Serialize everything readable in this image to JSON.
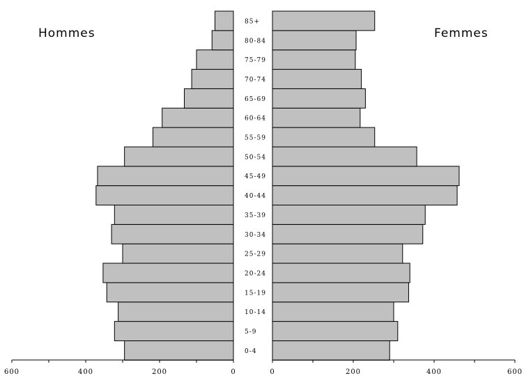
{
  "chart_data": {
    "type": "bar",
    "orientation": "horizontal",
    "layout": "population-pyramid",
    "categories": [
      "0-4",
      "5-9",
      "10-14",
      "15-19",
      "20-24",
      "25-29",
      "30-34",
      "35-39",
      "40-44",
      "45-49",
      "50-54",
      "55-59",
      "60-64",
      "65-69",
      "70-74",
      "75-79",
      "80-84",
      "85+"
    ],
    "series": [
      {
        "name": "Hommes",
        "side": "left",
        "values": [
          295,
          322,
          312,
          343,
          353,
          300,
          330,
          322,
          372,
          368,
          295,
          218,
          193,
          133,
          113,
          100,
          58,
          50
        ]
      },
      {
        "name": "Femmes",
        "side": "right",
        "values": [
          290,
          310,
          300,
          337,
          340,
          322,
          372,
          378,
          457,
          462,
          357,
          253,
          217,
          230,
          220,
          205,
          207,
          253
        ]
      }
    ],
    "xlim": [
      0,
      600
    ],
    "xticks": [
      0,
      200,
      400,
      600
    ],
    "grid": false,
    "colors": {
      "bar": "#c0c0c0",
      "edge": "#000000"
    }
  }
}
